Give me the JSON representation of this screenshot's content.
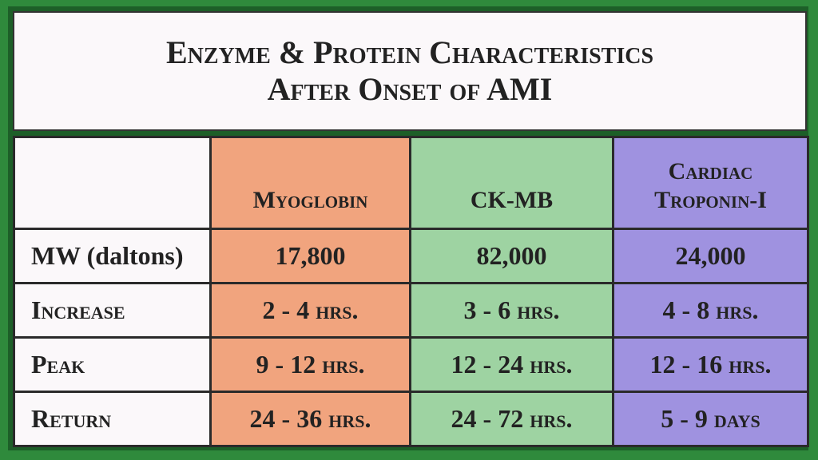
{
  "header": {
    "title": [
      "Enzyme & Protein Characteristics",
      "After Onset of AMI"
    ]
  },
  "table": {
    "columns": [
      "Myoglobin",
      "CK-MB",
      "Cardiac Troponin-I"
    ],
    "rows": [
      [
        "MW (daltons)",
        "17,800",
        "82,000",
        "24,000"
      ],
      [
        "Increase",
        "2 - 4 hrs.",
        "3 - 6 hrs.",
        "4 - 8 hrs."
      ],
      [
        "Peak",
        "9 - 12 hrs.",
        "12 - 24 hrs.",
        "12 - 16 hrs."
      ],
      [
        "Return",
        "24 - 36 hrs.",
        "24 - 72 hrs.",
        "5 - 9 days"
      ]
    ]
  }
}
